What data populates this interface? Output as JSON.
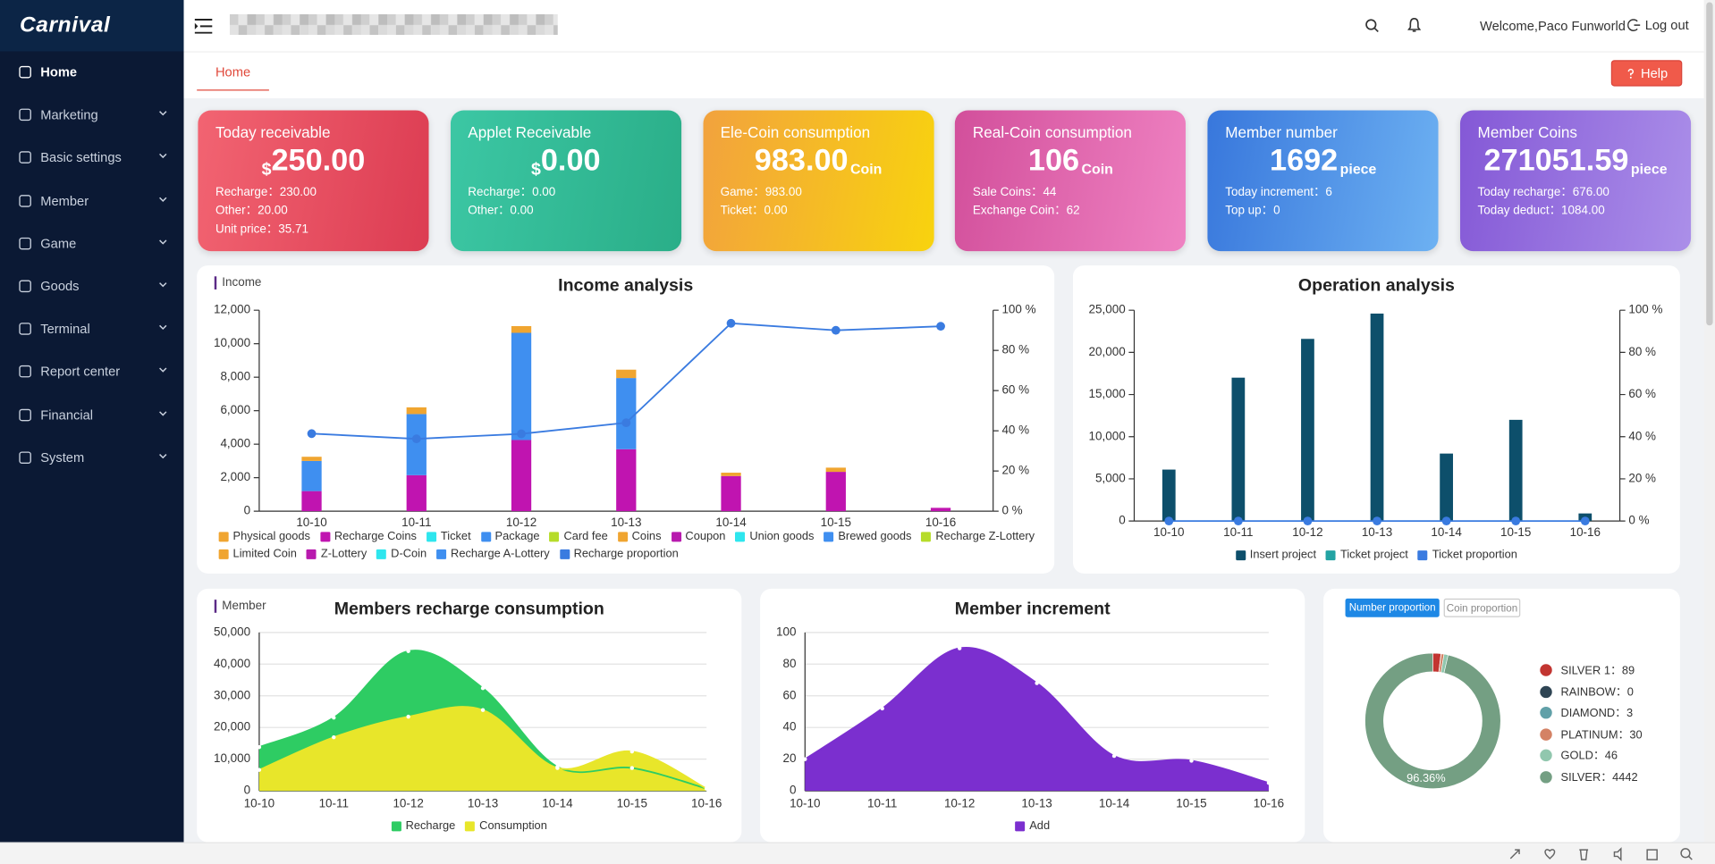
{
  "sidebar": {
    "logo": "Carnival",
    "menu": [
      "Home",
      "Marketing",
      "Basic settings",
      "Member",
      "Game",
      "Goods",
      "Terminal",
      "Report center",
      "Financial",
      "System"
    ]
  },
  "header": {
    "welcome": "Welcome,Paco Funworld",
    "logout": "Log out",
    "tab": "Home",
    "help": "Help"
  },
  "cards": [
    {
      "title": "Today receivable",
      "prefix": "$",
      "value": "250.00",
      "lines": [
        "Recharge：230.00",
        "Other：20.00",
        "Unit price：35.71"
      ],
      "colors": [
        "#f26472",
        "#dc3c52"
      ]
    },
    {
      "title": "Applet Receivable",
      "prefix": "$",
      "value": "0.00",
      "lines": [
        "Recharge：0.00",
        "Other：0.00"
      ],
      "colors": [
        "#3cc7a4",
        "#2aae88"
      ]
    },
    {
      "title": "Ele-Coin consumption",
      "value": "983.00",
      "unit": "Coin",
      "lines": [
        "Game：983.00",
        "Ticket：0.00"
      ],
      "colors": [
        "#f2a23e",
        "#f8d30e"
      ]
    },
    {
      "title": "Real-Coin consumption",
      "value": "106",
      "unit": "Coin",
      "lines": [
        "Sale Coins：44",
        "Exchange Coin：62"
      ],
      "colors": [
        "#d24f9b",
        "#ef82c2"
      ]
    },
    {
      "title": "Member number",
      "value": "1692",
      "unit": "piece",
      "lines": [
        "Today increment：6",
        "Top up：0"
      ],
      "colors": [
        "#3877dc",
        "#6db1f2"
      ]
    },
    {
      "title": "Member Coins",
      "value": "271051.59",
      "unit": "piece",
      "lines": [
        "Today recharge：676.00",
        "Today deduct：1084.00"
      ],
      "colors": [
        "#8458d6",
        "#ab8fe9"
      ]
    }
  ],
  "chart_data": [
    {
      "type": "bar",
      "stacked": true,
      "section": "Income",
      "title": "Income analysis",
      "categories": [
        "10-10",
        "10-11",
        "10-12",
        "10-13",
        "10-14",
        "10-15",
        "10-16"
      ],
      "ylim": [
        0,
        12000
      ],
      "yticks": [
        0,
        {
          "value": 2000,
          "label": "2,000"
        },
        {
          "value": 4000,
          "label": "4,000"
        },
        {
          "value": 6000,
          "label": "6,000"
        },
        {
          "value": 8000,
          "label": "8,000"
        },
        {
          "value": 10000,
          "label": "10,000"
        },
        {
          "value": 12000,
          "label": "12,000"
        }
      ],
      "y2lim": [
        0,
        100
      ],
      "y2ticks": [
        {
          "value": 0,
          "label": "0 %"
        },
        {
          "value": 20,
          "label": "20 %"
        },
        {
          "value": 40,
          "label": "40 %"
        },
        {
          "value": 60,
          "label": "60 %"
        },
        {
          "value": 80,
          "label": "80 %"
        },
        {
          "value": 100,
          "label": "100 %"
        }
      ],
      "grid": false,
      "series": [
        {
          "name": "Physical goods",
          "color": "#f0a530",
          "values": [
            0,
            0,
            0,
            0,
            0,
            0,
            0
          ]
        },
        {
          "name": "Recharge Coins",
          "color": "#c014b0",
          "values": [
            1200,
            2150,
            4250,
            3700,
            2100,
            2350,
            200
          ]
        },
        {
          "name": "Ticket",
          "color": "#2ee6ee",
          "values": [
            0,
            0,
            0,
            0,
            0,
            0,
            0
          ]
        },
        {
          "name": "Package",
          "color": "#3f8ff0",
          "values": [
            1800,
            3650,
            6400,
            4250,
            0,
            0,
            0
          ]
        },
        {
          "name": "Card fee",
          "color": "#b6dc2a",
          "values": [
            0,
            0,
            0,
            0,
            0,
            0,
            0
          ]
        },
        {
          "name": "Coins",
          "color": "#f0a530",
          "values": [
            250,
            400,
            400,
            500,
            200,
            250,
            0
          ]
        },
        {
          "name": "Coupon",
          "color": "#b81aae",
          "values": [
            0,
            0,
            0,
            0,
            0,
            0,
            0
          ]
        },
        {
          "name": "Union goods",
          "color": "#2ee6ee",
          "values": [
            0,
            0,
            0,
            0,
            0,
            0,
            0
          ]
        },
        {
          "name": "Brewed goods",
          "color": "#3f8ff0",
          "values": [
            0,
            0,
            0,
            0,
            0,
            0,
            0
          ]
        },
        {
          "name": "Recharge Z-Lottery",
          "color": "#b6dc2a",
          "values": [
            0,
            0,
            0,
            0,
            0,
            0,
            0
          ]
        },
        {
          "name": "Limited Coin",
          "color": "#f0a530",
          "values": [
            0,
            0,
            0,
            0,
            0,
            0,
            0
          ]
        },
        {
          "name": "Z-Lottery",
          "color": "#b81aae",
          "values": [
            0,
            0,
            0,
            0,
            0,
            0,
            0
          ]
        },
        {
          "name": "D-Coin",
          "color": "#2ee6ee",
          "values": [
            0,
            0,
            0,
            0,
            0,
            0,
            0
          ]
        },
        {
          "name": "Recharge A-Lottery",
          "color": "#3f8ff0",
          "values": [
            0,
            0,
            0,
            0,
            0,
            0,
            0
          ]
        },
        {
          "name": "Recharge proportion",
          "type": "line",
          "axis": "y2",
          "color": "#3a7be0",
          "values": [
            38.6,
            36,
            38.5,
            44,
            93.5,
            90,
            92
          ]
        }
      ]
    },
    {
      "type": "bar",
      "stacked": true,
      "title": "Operation analysis",
      "categories": [
        "10-10",
        "10-11",
        "10-12",
        "10-13",
        "10-14",
        "10-15",
        "10-16"
      ],
      "ylim": [
        0,
        25000
      ],
      "yticks": [
        0,
        {
          "value": 5000,
          "label": "5,000"
        },
        {
          "value": 10000,
          "label": "10,000"
        },
        {
          "value": 15000,
          "label": "15,000"
        },
        {
          "value": 20000,
          "label": "20,000"
        },
        {
          "value": 25000,
          "label": "25,000"
        }
      ],
      "y2lim": [
        0,
        100
      ],
      "y2ticks": [
        {
          "value": 0,
          "label": "0 %"
        },
        {
          "value": 20,
          "label": "20 %"
        },
        {
          "value": 40,
          "label": "40 %"
        },
        {
          "value": 60,
          "label": "60 %"
        },
        {
          "value": 80,
          "label": "80 %"
        },
        {
          "value": 100,
          "label": "100 %"
        }
      ],
      "grid": false,
      "series": [
        {
          "name": "Insert project",
          "color": "#0d4f6b",
          "values": [
            6100,
            17000,
            21600,
            24600,
            8000,
            12000,
            900
          ]
        },
        {
          "name": "Ticket project",
          "color": "#23a3a3",
          "values": [
            0,
            0,
            0,
            0,
            0,
            0,
            0
          ]
        },
        {
          "name": "Ticket proportion",
          "type": "line",
          "axis": "y2",
          "color": "#3a7be0",
          "values": [
            0,
            0,
            0,
            0,
            0,
            0,
            0
          ]
        }
      ]
    },
    {
      "type": "area",
      "section": "Member",
      "title": "Members recharge consumption",
      "categories": [
        "10-10",
        "10-11",
        "10-12",
        "10-13",
        "10-14",
        "10-15",
        "10-16"
      ],
      "ylim": [
        0,
        50000
      ],
      "yticks": [
        0,
        {
          "value": 10000,
          "label": "10,000"
        },
        {
          "value": 20000,
          "label": "20,000"
        },
        {
          "value": 30000,
          "label": "30,000"
        },
        {
          "value": 40000,
          "label": "40,000"
        },
        {
          "value": 50000,
          "label": "50,000"
        }
      ],
      "grid": true,
      "series": [
        {
          "name": "Recharge",
          "color": "#2ecc63",
          "values": [
            13800,
            23100,
            44100,
            32400,
            7600,
            7200,
            700
          ]
        },
        {
          "name": "Consumption",
          "color": "#e8e62a",
          "values": [
            6600,
            16900,
            23400,
            25500,
            7200,
            12400,
            700
          ]
        }
      ]
    },
    {
      "type": "area",
      "title": "Member increment",
      "categories": [
        "10-10",
        "10-11",
        "10-12",
        "10-13",
        "10-14",
        "10-15",
        "10-16"
      ],
      "ylim": [
        0,
        100
      ],
      "yticks": [
        0,
        20,
        40,
        60,
        80,
        100
      ],
      "grid": true,
      "series": [
        {
          "name": "Add",
          "color": "#7b2fcf",
          "values": [
            20,
            52,
            90,
            68,
            22,
            19,
            5
          ]
        }
      ]
    },
    {
      "type": "pie",
      "tabs": [
        "Number proportion",
        "Coin proportion"
      ],
      "categories": [
        "SILVER 1",
        "RAINBOW",
        "DIAMOND",
        "PLATINUM",
        "GOLD",
        "SILVER"
      ],
      "values": [
        89,
        0,
        3,
        30,
        46,
        4442
      ],
      "legend_labels": [
        "SILVER 1：89",
        "RAINBOW：0",
        "DIAMOND：3",
        "PLATINUM：30",
        "GOLD：46",
        "SILVER：4442"
      ],
      "value_labels": [
        null,
        null,
        null,
        null,
        null,
        "96.36%"
      ],
      "colors": [
        "#c23531",
        "#2f4554",
        "#61a0a8",
        "#d48265",
        "#91c7ae",
        "#749f83"
      ]
    }
  ]
}
